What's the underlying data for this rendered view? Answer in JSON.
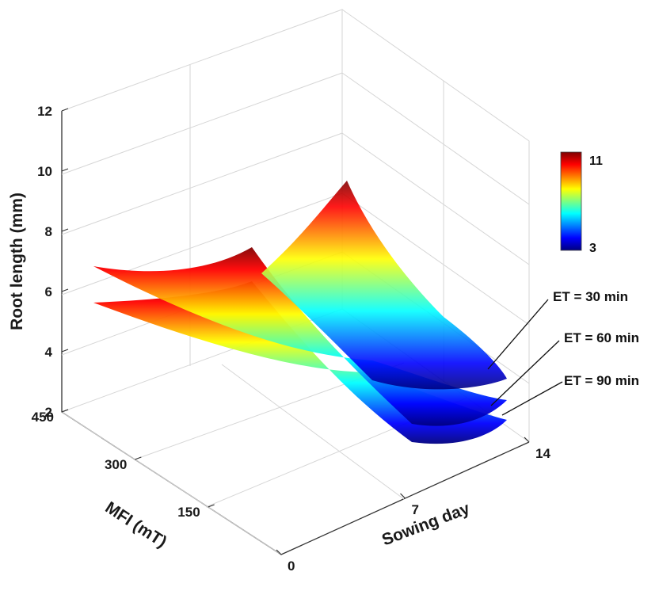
{
  "chart_data": {
    "type": "surface",
    "zlabel": "Root length (mm)",
    "xlabel": "Sowing day",
    "ylabel": "MFI (mT)",
    "x_ticks": [
      "0",
      "7",
      "14"
    ],
    "y_ticks": [
      "150",
      "300",
      "450"
    ],
    "z_ticks": [
      "2",
      "4",
      "6",
      "8",
      "10",
      "12"
    ],
    "xlim": [
      0,
      14
    ],
    "ylim": [
      0,
      450
    ],
    "zlim": [
      2,
      12
    ],
    "colorbar": {
      "min": 3,
      "max": 11,
      "min_label": "3",
      "max_label": "11",
      "colormap": "jet"
    },
    "grid": true,
    "series": [
      {
        "name": "ET = 30 min",
        "points": [
          {
            "x": 0,
            "y": 450,
            "z": 6.5
          },
          {
            "x": 0,
            "y": 150,
            "z": 5.7
          },
          {
            "x": 7,
            "y": 450,
            "z": 9.4
          },
          {
            "x": 7,
            "y": 150,
            "z": 8.1
          },
          {
            "x": 14,
            "y": 450,
            "z": 10.5
          },
          {
            "x": 14,
            "y": 150,
            "z": 4.0
          }
        ]
      },
      {
        "name": "ET = 60 min",
        "points": [
          {
            "x": 0,
            "y": 450,
            "z": 5.6
          },
          {
            "x": 0,
            "y": 150,
            "z": 4.4
          },
          {
            "x": 7,
            "y": 450,
            "z": 7.6
          },
          {
            "x": 7,
            "y": 150,
            "z": 6.2
          },
          {
            "x": 14,
            "y": 450,
            "z": 3.6
          },
          {
            "x": 14,
            "y": 150,
            "z": 2.9
          }
        ]
      },
      {
        "name": "ET = 90 min",
        "points": [
          {
            "x": 0,
            "y": 450,
            "z": 5.3
          },
          {
            "x": 0,
            "y": 150,
            "z": 4.0
          },
          {
            "x": 7,
            "y": 450,
            "z": 7.2
          },
          {
            "x": 7,
            "y": 150,
            "z": 5.8
          },
          {
            "x": 14,
            "y": 450,
            "z": 3.2
          },
          {
            "x": 14,
            "y": 150,
            "z": 2.6
          }
        ]
      }
    ]
  }
}
